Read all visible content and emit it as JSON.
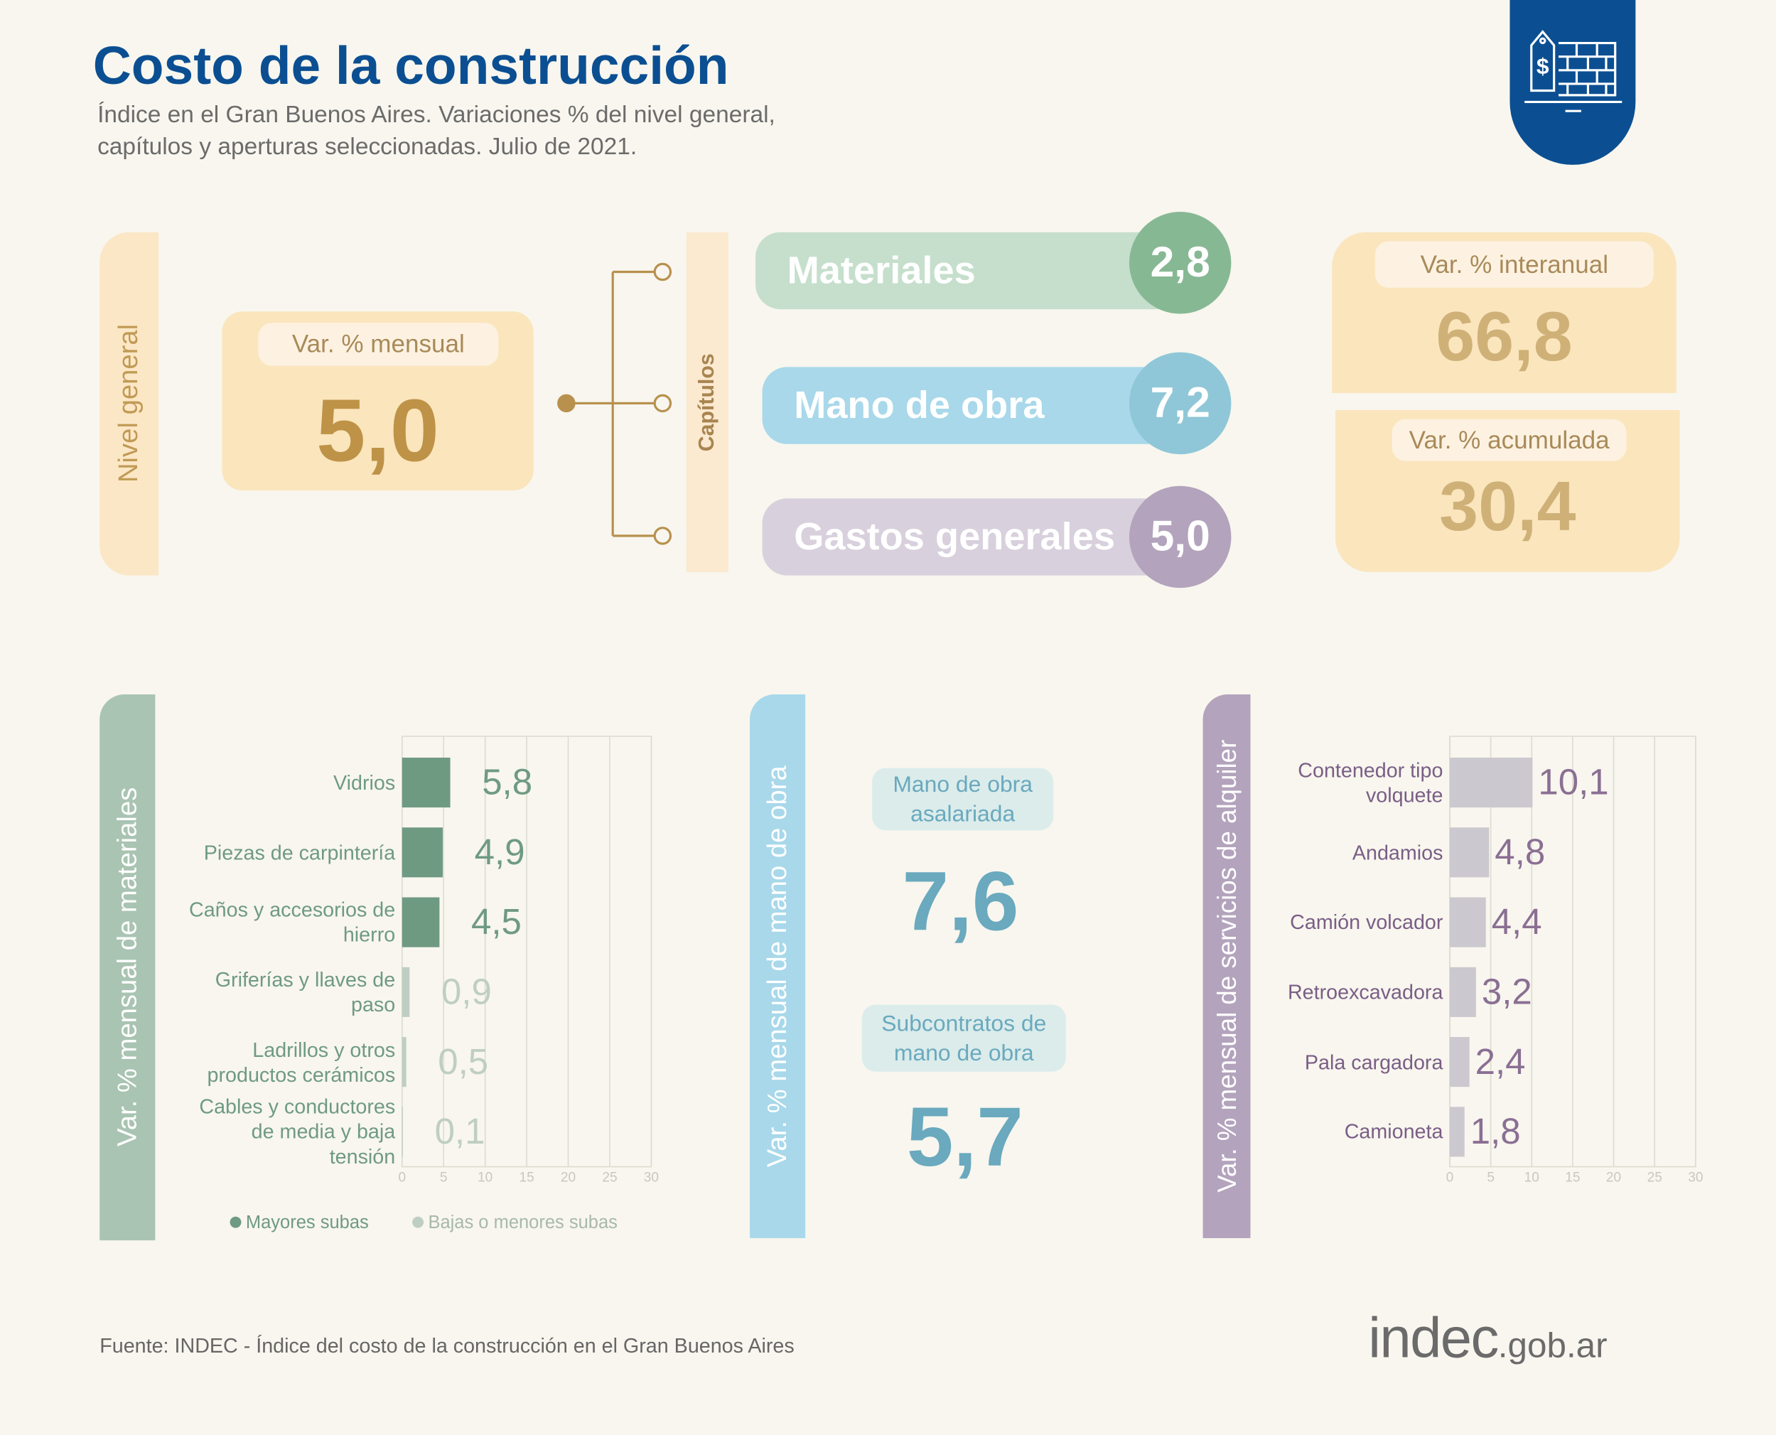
{
  "header": {
    "title": "Costo de la construcción",
    "subtitle": [
      "Índice en el Gran Buenos Aires. Variaciones % del nivel general,",
      "capítulos y aperturas seleccionadas. Julio de 2021."
    ]
  },
  "nivel_general": {
    "label": "Nivel general",
    "measure": "Var. % mensual",
    "value": "5,0"
  },
  "capitulos": {
    "label": "Capítulos",
    "items": [
      {
        "name": "Materiales",
        "value": "2,8"
      },
      {
        "name": "Mano de obra",
        "value": "7,2"
      },
      {
        "name": "Gastos generales",
        "value": "5,0"
      }
    ]
  },
  "interanual": {
    "label": "Var. % interanual",
    "value": "66,8"
  },
  "acumulada": {
    "label": "Var. % acumulada",
    "value": "30,4"
  },
  "chart_data": [
    {
      "type": "bar",
      "orientation": "horizontal",
      "title": "Var. % mensual de materiales",
      "categories": [
        "Vidrios",
        "Piezas de carpintería",
        "Caños y accesorios de hierro",
        "Griferías y llaves de paso",
        "Ladrillos y otros productos cerámicos",
        "Cables y conductores de media y baja tensión"
      ],
      "series": [
        {
          "name": "Mayores subas",
          "color": "#6f9a82",
          "values": [
            5.8,
            4.9,
            4.5,
            null,
            null,
            null
          ],
          "value_labels": [
            "5,8",
            "4,9",
            "4,5",
            null,
            null,
            null
          ]
        },
        {
          "name": "Bajas o menores subas",
          "color": "#bfcec3",
          "values": [
            null,
            null,
            null,
            0.9,
            0.5,
            0.1
          ],
          "value_labels": [
            null,
            null,
            null,
            "0,9",
            "0,5",
            "0,1"
          ]
        }
      ],
      "xlim": [
        0,
        30
      ],
      "xticks": [
        0,
        5,
        10,
        15,
        20,
        25,
        30
      ],
      "grid": true,
      "legend": "bottom"
    },
    {
      "type": "bar",
      "orientation": "horizontal",
      "title": "Var. % mensual de servicios de alquiler",
      "categories": [
        "Contenedor tipo volquete",
        "Andamios",
        "Camión volcador",
        "Retroexcavadora",
        "Pala cargadora",
        "Camioneta"
      ],
      "values": [
        10.1,
        4.8,
        4.4,
        3.2,
        2.4,
        1.8
      ],
      "value_labels": [
        "10,1",
        "4,8",
        "4,4",
        "3,2",
        "2,4",
        "1,8"
      ],
      "color": "#cbc8cf",
      "xlim": [
        0,
        30
      ],
      "xticks": [
        0,
        5,
        10,
        15,
        20,
        25,
        30
      ],
      "grid": true
    }
  ],
  "mano_de_obra": {
    "label": "Var. % mensual de mano de obra",
    "items": [
      {
        "name": "Mano de obra asalariada",
        "value": "7,6"
      },
      {
        "name": "Subcontratos de mano de obra",
        "value": "5,7"
      }
    ]
  },
  "footer": {
    "source": "Fuente: INDEC - Índice del costo de la construcción en el Gran Buenos Aires",
    "logo": {
      "main": "indec",
      "suffix": ".gob.ar"
    }
  }
}
